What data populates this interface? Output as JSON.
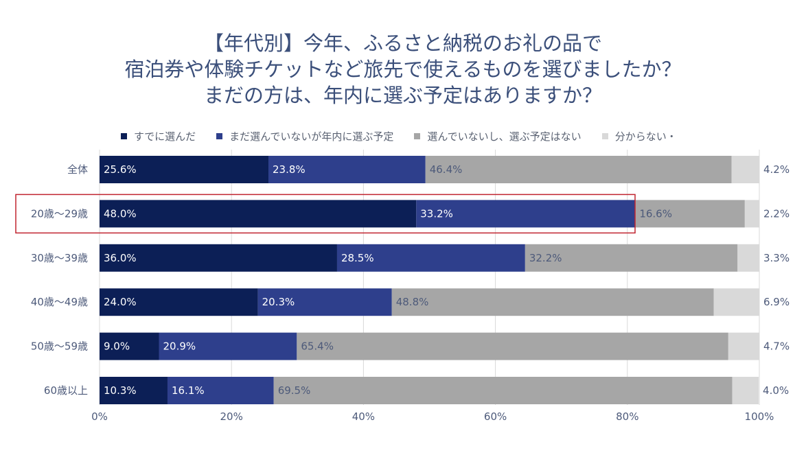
{
  "title_lines": [
    "【年代別】今年、ふるさと納税のお礼の品で",
    "宿泊券や体験チケットなど旅先で使えるものを選びましたか？",
    "まだの方は、年内に選ぶ予定はありますか？"
  ],
  "colors": {
    "series": [
      "#0c1f56",
      "#2e3f8c",
      "#a6a6a6",
      "#d9d9d9"
    ],
    "highlight_box": "#c0232e",
    "text": "#4d5a7a"
  },
  "chart_data": {
    "type": "bar",
    "orientation": "horizontal",
    "stacked": true,
    "categories": [
      "全体",
      "20歳～29歳",
      "30歳～39歳",
      "40歳～49歳",
      "50歳～59歳",
      "60歳以上"
    ],
    "series": [
      {
        "name": "すでに選んだ",
        "values": [
          25.6,
          48.0,
          36.0,
          24.0,
          9.0,
          10.3
        ]
      },
      {
        "name": "まだ選んでいないが年内に選ぶ予定",
        "values": [
          23.8,
          33.2,
          28.5,
          20.3,
          20.9,
          16.1
        ]
      },
      {
        "name": "選んでいないし、選ぶ予定はない",
        "values": [
          46.4,
          16.6,
          32.2,
          48.8,
          65.4,
          69.5
        ]
      },
      {
        "name": "分からない・",
        "values": [
          4.2,
          2.2,
          3.3,
          6.9,
          4.7,
          4.0
        ]
      }
    ],
    "x_ticks": [
      "0%",
      "20%",
      "40%",
      "60%",
      "80%",
      "100%"
    ],
    "xlim": [
      0,
      100
    ],
    "grid": true,
    "legend_position": "top",
    "highlighted_category": "20歳～29歳"
  }
}
